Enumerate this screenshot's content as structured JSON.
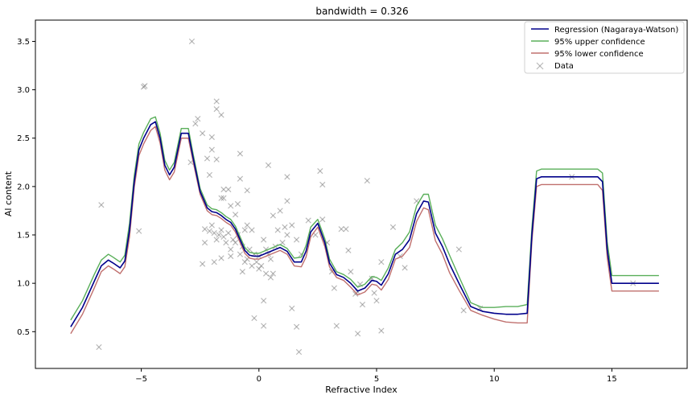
{
  "chart_data": {
    "type": "line",
    "title": "bandwidth = 0.326",
    "xlabel": "Refractive Index",
    "ylabel": "Al content",
    "xlim": [
      -9.5,
      18.2
    ],
    "ylim": [
      0.12,
      3.72
    ],
    "xticks": [
      -5,
      0,
      5,
      10,
      15
    ],
    "yticks": [
      0.5,
      1.0,
      1.5,
      2.0,
      2.5,
      3.0,
      3.5
    ],
    "xtick_labels": [
      "−5",
      "0",
      "5",
      "10",
      "15"
    ],
    "ytick_labels": [
      "0.5",
      "1.0",
      "1.5",
      "2.0",
      "2.5",
      "3.0",
      "3.5"
    ],
    "grid": false,
    "legend_position": "top-right",
    "series": [
      {
        "name": "Regression (Nagaraya-Watson)",
        "color": "#00008b",
        "x": [
          -8.0,
          -7.5,
          -7.0,
          -6.7,
          -6.4,
          -6.2,
          -5.9,
          -5.7,
          -5.5,
          -5.3,
          -5.1,
          -4.9,
          -4.6,
          -4.4,
          -4.2,
          -4.0,
          -3.8,
          -3.6,
          -3.3,
          -3.0,
          -2.8,
          -2.5,
          -2.2,
          -2.0,
          -1.8,
          -1.6,
          -1.4,
          -1.2,
          -1.0,
          -0.8,
          -0.6,
          -0.4,
          -0.2,
          0.0,
          0.3,
          0.6,
          0.9,
          1.2,
          1.5,
          1.8,
          2.0,
          2.2,
          2.5,
          2.8,
          3.0,
          3.3,
          3.6,
          3.9,
          4.2,
          4.5,
          4.8,
          5.0,
          5.2,
          5.5,
          5.8,
          6.1,
          6.4,
          6.7,
          7.0,
          7.2,
          7.5,
          7.8,
          8.1,
          8.5,
          9.0,
          9.5,
          10.0,
          10.5,
          11.0,
          11.4,
          11.6,
          11.8,
          12.0,
          12.5,
          13.0,
          13.5,
          14.0,
          14.4,
          14.6,
          14.8,
          15.0,
          15.5,
          16.0,
          16.5,
          17.0
        ],
        "y": [
          0.55,
          0.75,
          1.02,
          1.18,
          1.24,
          1.21,
          1.16,
          1.23,
          1.55,
          2.05,
          2.38,
          2.5,
          2.64,
          2.67,
          2.5,
          2.22,
          2.12,
          2.2,
          2.55,
          2.55,
          2.3,
          1.95,
          1.78,
          1.74,
          1.73,
          1.7,
          1.66,
          1.63,
          1.56,
          1.45,
          1.34,
          1.29,
          1.28,
          1.28,
          1.31,
          1.34,
          1.37,
          1.33,
          1.22,
          1.22,
          1.33,
          1.53,
          1.62,
          1.42,
          1.21,
          1.09,
          1.06,
          1.0,
          0.92,
          0.95,
          1.03,
          1.02,
          0.98,
          1.1,
          1.3,
          1.35,
          1.45,
          1.72,
          1.85,
          1.84,
          1.52,
          1.38,
          1.2,
          1.0,
          0.76,
          0.71,
          0.69,
          0.68,
          0.68,
          0.69,
          1.5,
          2.08,
          2.1,
          2.1,
          2.1,
          2.1,
          2.1,
          2.1,
          2.05,
          1.35,
          1.0,
          1.0,
          1.0,
          1.0,
          1.0
        ]
      },
      {
        "name": "95% upper confidence",
        "color": "#5aaf5a",
        "x": [
          -8.0,
          -7.5,
          -7.0,
          -6.7,
          -6.4,
          -6.2,
          -5.9,
          -5.7,
          -5.5,
          -5.3,
          -5.1,
          -4.9,
          -4.6,
          -4.4,
          -4.2,
          -4.0,
          -3.8,
          -3.6,
          -3.3,
          -3.0,
          -2.8,
          -2.5,
          -2.2,
          -2.0,
          -1.8,
          -1.6,
          -1.4,
          -1.2,
          -1.0,
          -0.8,
          -0.6,
          -0.4,
          -0.2,
          0.0,
          0.3,
          0.6,
          0.9,
          1.2,
          1.5,
          1.8,
          2.0,
          2.2,
          2.5,
          2.8,
          3.0,
          3.3,
          3.6,
          3.9,
          4.2,
          4.5,
          4.8,
          5.0,
          5.2,
          5.5,
          5.8,
          6.1,
          6.4,
          6.7,
          7.0,
          7.2,
          7.5,
          7.8,
          8.1,
          8.5,
          9.0,
          9.5,
          10.0,
          10.5,
          11.0,
          11.4,
          11.6,
          11.8,
          12.0,
          12.5,
          13.0,
          13.5,
          14.0,
          14.4,
          14.6,
          14.8,
          15.0,
          15.5,
          16.0,
          16.5,
          17.0
        ],
        "y": [
          0.62,
          0.82,
          1.09,
          1.24,
          1.3,
          1.27,
          1.22,
          1.29,
          1.62,
          2.11,
          2.44,
          2.56,
          2.7,
          2.72,
          2.55,
          2.27,
          2.17,
          2.25,
          2.6,
          2.6,
          2.34,
          1.98,
          1.81,
          1.77,
          1.76,
          1.73,
          1.69,
          1.66,
          1.59,
          1.48,
          1.37,
          1.32,
          1.31,
          1.31,
          1.34,
          1.37,
          1.4,
          1.36,
          1.26,
          1.27,
          1.39,
          1.58,
          1.66,
          1.46,
          1.25,
          1.12,
          1.09,
          1.04,
          0.96,
          0.99,
          1.07,
          1.06,
          1.03,
          1.16,
          1.35,
          1.42,
          1.53,
          1.8,
          1.92,
          1.92,
          1.6,
          1.46,
          1.29,
          1.07,
          0.8,
          0.75,
          0.75,
          0.76,
          0.76,
          0.78,
          1.57,
          2.16,
          2.18,
          2.18,
          2.18,
          2.18,
          2.18,
          2.18,
          2.14,
          1.43,
          1.08,
          1.08,
          1.08,
          1.08,
          1.08
        ]
      },
      {
        "name": "95% lower confidence",
        "color": "#c0706e",
        "x": [
          -8.0,
          -7.5,
          -7.0,
          -6.7,
          -6.4,
          -6.2,
          -5.9,
          -5.7,
          -5.5,
          -5.3,
          -5.1,
          -4.9,
          -4.6,
          -4.4,
          -4.2,
          -4.0,
          -3.8,
          -3.6,
          -3.3,
          -3.0,
          -2.8,
          -2.5,
          -2.2,
          -2.0,
          -1.8,
          -1.6,
          -1.4,
          -1.2,
          -1.0,
          -0.8,
          -0.6,
          -0.4,
          -0.2,
          0.0,
          0.3,
          0.6,
          0.9,
          1.2,
          1.5,
          1.8,
          2.0,
          2.2,
          2.5,
          2.8,
          3.0,
          3.3,
          3.6,
          3.9,
          4.2,
          4.5,
          4.8,
          5.0,
          5.2,
          5.5,
          5.8,
          6.1,
          6.4,
          6.7,
          7.0,
          7.2,
          7.5,
          7.8,
          8.1,
          8.5,
          9.0,
          9.5,
          10.0,
          10.5,
          11.0,
          11.4,
          11.6,
          11.8,
          12.0,
          12.5,
          13.0,
          13.5,
          14.0,
          14.4,
          14.6,
          14.8,
          15.0,
          15.5,
          16.0,
          16.5,
          17.0
        ],
        "y": [
          0.48,
          0.68,
          0.95,
          1.12,
          1.18,
          1.15,
          1.1,
          1.17,
          1.48,
          1.99,
          2.32,
          2.44,
          2.58,
          2.62,
          2.45,
          2.17,
          2.07,
          2.15,
          2.5,
          2.5,
          2.26,
          1.92,
          1.75,
          1.71,
          1.7,
          1.67,
          1.63,
          1.6,
          1.53,
          1.42,
          1.31,
          1.26,
          1.25,
          1.25,
          1.28,
          1.31,
          1.34,
          1.3,
          1.18,
          1.17,
          1.27,
          1.48,
          1.58,
          1.38,
          1.17,
          1.06,
          1.03,
          0.96,
          0.88,
          0.91,
          0.99,
          0.98,
          0.93,
          1.04,
          1.25,
          1.28,
          1.37,
          1.64,
          1.78,
          1.76,
          1.44,
          1.3,
          1.11,
          0.93,
          0.72,
          0.67,
          0.63,
          0.6,
          0.59,
          0.59,
          1.43,
          2.0,
          2.02,
          2.02,
          2.02,
          2.02,
          2.02,
          2.02,
          1.96,
          1.27,
          0.92,
          0.92,
          0.92,
          0.92,
          0.92
        ]
      }
    ],
    "scatter": {
      "name": "Data",
      "color": "#808080",
      "marker": "x",
      "points": [
        [
          -6.8,
          0.34
        ],
        [
          -6.7,
          1.81
        ],
        [
          -5.1,
          1.54
        ],
        [
          -4.9,
          3.03
        ],
        [
          -4.85,
          3.04
        ],
        [
          -2.85,
          3.5
        ],
        [
          -2.9,
          2.25
        ],
        [
          -2.7,
          2.65
        ],
        [
          -2.6,
          2.7
        ],
        [
          -2.4,
          2.55
        ],
        [
          -2.0,
          2.38
        ],
        [
          -2.0,
          2.51
        ],
        [
          -1.8,
          2.88
        ],
        [
          -1.8,
          2.8
        ],
        [
          -1.6,
          2.74
        ],
        [
          -2.2,
          2.29
        ],
        [
          -1.8,
          2.28
        ],
        [
          -2.1,
          2.12
        ],
        [
          -1.5,
          1.97
        ],
        [
          -1.3,
          1.97
        ],
        [
          -1.5,
          1.88
        ],
        [
          -1.6,
          1.88
        ],
        [
          -1.2,
          1.8
        ],
        [
          -0.9,
          1.82
        ],
        [
          -0.8,
          2.08
        ],
        [
          -0.5,
          1.96
        ],
        [
          -0.8,
          2.34
        ],
        [
          -1.0,
          1.71
        ],
        [
          -0.6,
          1.55
        ],
        [
          -0.3,
          1.55
        ],
        [
          -2.3,
          1.56
        ],
        [
          -2.3,
          1.42
        ],
        [
          -2.1,
          1.54
        ],
        [
          -2.0,
          1.6
        ],
        [
          -1.9,
          1.52
        ],
        [
          -1.8,
          1.45
        ],
        [
          -1.7,
          1.5
        ],
        [
          -1.6,
          1.55
        ],
        [
          -1.5,
          1.48
        ],
        [
          -1.4,
          1.42
        ],
        [
          -1.3,
          1.52
        ],
        [
          -1.2,
          1.35
        ],
        [
          -1.1,
          1.45
        ],
        [
          -1.0,
          1.42
        ],
        [
          -0.9,
          1.5
        ],
        [
          -0.8,
          1.3
        ],
        [
          -0.7,
          1.38
        ],
        [
          -0.6,
          1.22
        ],
        [
          -0.5,
          1.25
        ],
        [
          -0.4,
          1.35
        ],
        [
          -0.3,
          1.18
        ],
        [
          -0.2,
          1.3
        ],
        [
          -0.1,
          1.22
        ],
        [
          0.0,
          1.28
        ],
        [
          0.1,
          1.18
        ],
        [
          0.2,
          1.45
        ],
        [
          0.3,
          1.35
        ],
        [
          0.4,
          1.3
        ],
        [
          0.5,
          1.25
        ],
        [
          0.6,
          1.1
        ],
        [
          0.7,
          1.38
        ],
        [
          0.8,
          1.55
        ],
        [
          1.0,
          1.42
        ],
        [
          1.1,
          1.58
        ],
        [
          1.2,
          1.5
        ],
        [
          -2.4,
          1.2
        ],
        [
          -1.9,
          1.22
        ],
        [
          -1.6,
          1.26
        ],
        [
          -1.2,
          1.28
        ],
        [
          -0.7,
          1.12
        ],
        [
          -0.5,
          1.6
        ],
        [
          0.0,
          1.15
        ],
        [
          0.3,
          1.1
        ],
        [
          0.5,
          1.06
        ],
        [
          0.2,
          0.82
        ],
        [
          -0.2,
          0.64
        ],
        [
          0.2,
          0.56
        ],
        [
          0.4,
          2.22
        ],
        [
          0.6,
          1.7
        ],
        [
          0.9,
          1.75
        ],
        [
          1.2,
          1.85
        ],
        [
          1.2,
          2.1
        ],
        [
          1.4,
          1.6
        ],
        [
          1.6,
          1.45
        ],
        [
          1.8,
          1.3
        ],
        [
          1.4,
          0.74
        ],
        [
          1.6,
          0.55
        ],
        [
          1.7,
          0.29
        ],
        [
          2.1,
          1.65
        ],
        [
          2.4,
          1.5
        ],
        [
          2.6,
          2.16
        ],
        [
          2.7,
          2.02
        ],
        [
          2.7,
          1.66
        ],
        [
          2.9,
          1.42
        ],
        [
          3.1,
          1.12
        ],
        [
          3.2,
          0.95
        ],
        [
          3.3,
          0.56
        ],
        [
          3.5,
          1.56
        ],
        [
          3.7,
          1.56
        ],
        [
          3.8,
          1.34
        ],
        [
          3.9,
          1.12
        ],
        [
          4.1,
          0.89
        ],
        [
          4.2,
          0.91
        ],
        [
          4.3,
          0.99
        ],
        [
          4.4,
          0.78
        ],
        [
          4.2,
          0.48
        ],
        [
          4.6,
          2.06
        ],
        [
          4.8,
          1.05
        ],
        [
          4.9,
          0.9
        ],
        [
          5.0,
          0.82
        ],
        [
          5.2,
          1.22
        ],
        [
          5.2,
          0.51
        ],
        [
          5.7,
          1.58
        ],
        [
          6.0,
          1.28
        ],
        [
          6.2,
          1.16
        ],
        [
          6.7,
          1.85
        ],
        [
          8.5,
          1.35
        ],
        [
          8.7,
          0.72
        ],
        [
          9.4,
          0.74
        ],
        [
          13.3,
          2.1
        ],
        [
          15.9,
          1.0
        ]
      ]
    }
  }
}
